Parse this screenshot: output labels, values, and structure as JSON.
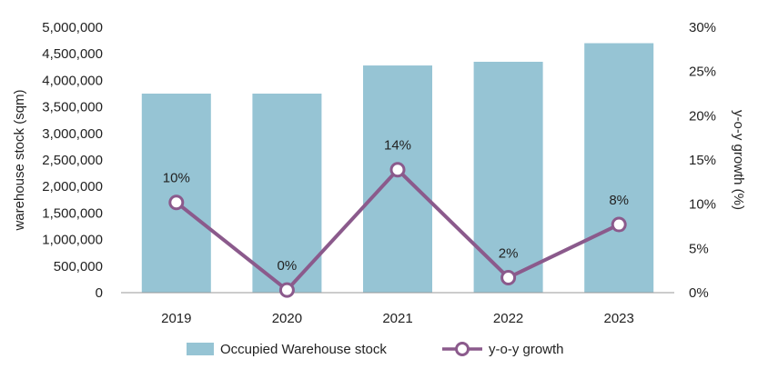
{
  "chart_data": {
    "type": "bar",
    "categories": [
      "2019",
      "2020",
      "2021",
      "2022",
      "2023"
    ],
    "series": [
      {
        "name": "Occupied Warehouse stock",
        "type": "bar",
        "axis": "left",
        "values": [
          3750000,
          3750000,
          4280000,
          4350000,
          4700000
        ],
        "color": "#96c4d4"
      },
      {
        "name": "y-o-y growth",
        "type": "line",
        "axis": "right",
        "values": [
          10,
          0,
          14,
          2,
          8
        ],
        "plot_values": [
          10.2,
          0.3,
          13.9,
          1.7,
          7.7
        ],
        "labels": [
          "10%",
          "0%",
          "14%",
          "2%",
          "8%"
        ],
        "color": "#8b5a8c"
      }
    ],
    "ylabel": "warehouse stock (sqm)",
    "y2label": "y-o-y growth (%)",
    "ylim": [
      0,
      5000000
    ],
    "y2lim": [
      0,
      30
    ],
    "yticks": [
      "0",
      "500,000",
      "1,000,000",
      "1,500,000",
      "2,000,000",
      "2,500,000",
      "3,000,000",
      "3,500,000",
      "4,000,000",
      "4,500,000",
      "5,000,000"
    ],
    "y2ticks": [
      "0%",
      "5%",
      "10%",
      "15%",
      "20%",
      "25%",
      "30%"
    ],
    "grid": false,
    "legend": "bottom"
  }
}
